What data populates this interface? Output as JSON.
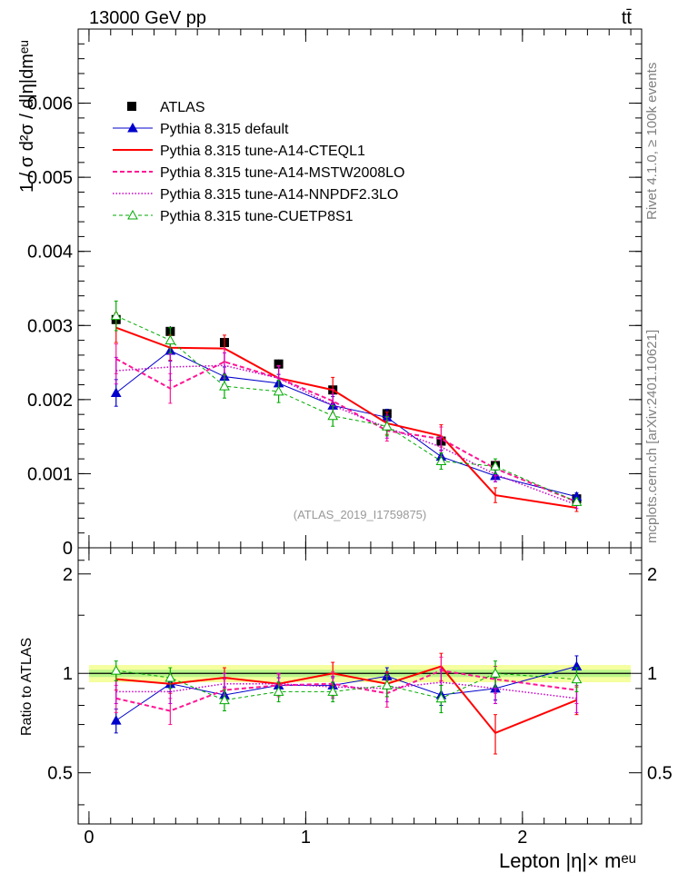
{
  "header": {
    "energy_label": "13000 GeV pp",
    "process_label": "tt̄"
  },
  "side_labels": {
    "rivet": "Rivet 4.1.0, ≥ 100k events",
    "mcplots": "mcplots.cern.ch [arXiv:2401.10621]"
  },
  "watermark": "(ATLAS_2019_I1759875)",
  "main_plot": {
    "ylabel": "1 / σ  d²σ / d|η|dmᵉᵘ",
    "yticks": [
      "0",
      "0.001",
      "0.002",
      "0.003",
      "0.004",
      "0.005",
      "0.006"
    ]
  },
  "ratio_plot": {
    "ylabel": "Ratio to ATLAS",
    "yticks": [
      "0.5",
      "1",
      "2"
    ]
  },
  "xaxis": {
    "label": "Lepton |η|× mᵉᵘ",
    "ticks": [
      "0",
      "1",
      "2"
    ]
  },
  "chart_data": {
    "type": "line",
    "title": "13000 GeV pp  tt̄",
    "xlabel": "Lepton |η|× m^eμ",
    "ylabel": "1/σ d²σ/d|η|dm^eμ",
    "xlim": [
      -0.05,
      2.55
    ],
    "ylim": [
      0,
      0.007
    ],
    "ratio_ylim": [
      0.35,
      2.4
    ],
    "legend_position": "top-left",
    "bin_centers": [
      0.125,
      0.375,
      0.625,
      0.875,
      1.125,
      1.375,
      1.625,
      1.875,
      2.25
    ],
    "bin_edges": [
      0,
      0.25,
      0.5,
      0.75,
      1.0,
      1.25,
      1.5,
      1.75,
      2.0,
      2.5
    ],
    "data": {
      "name": "ATLAS",
      "values": [
        0.00308,
        0.00292,
        0.00277,
        0.00248,
        0.00213,
        0.00181,
        0.00144,
        0.00111,
        0.00066
      ],
      "errors": [
        7e-05,
        7e-05,
        7e-05,
        6e-05,
        6e-05,
        5e-05,
        5e-05,
        4e-05,
        4e-05
      ]
    },
    "series": [
      {
        "name": "Pythia 8.315 default",
        "color": "#0000cc",
        "style": "solid",
        "width": 1,
        "marker": "triangle-filled",
        "values": [
          0.00209,
          0.00266,
          0.00231,
          0.00222,
          0.00192,
          0.00176,
          0.00123,
          0.00097,
          0.00069
        ],
        "errors": [
          0.00018,
          0.00014,
          0.00013,
          0.00012,
          0.00012,
          0.00011,
          9e-05,
          8e-05,
          5e-05
        ],
        "ratio": [
          0.72,
          0.93,
          0.86,
          0.92,
          0.92,
          0.98,
          0.86,
          0.9,
          1.05
        ],
        "ratio_errors": [
          0.06,
          0.05,
          0.05,
          0.05,
          0.05,
          0.06,
          0.06,
          0.07,
          0.08
        ]
      },
      {
        "name": "Pythia 8.315 tune-A14-CTEQL1",
        "color": "#ff0000",
        "style": "solid",
        "width": 2,
        "marker": "none",
        "values": [
          0.00297,
          0.0027,
          0.00269,
          0.00229,
          0.00213,
          0.00168,
          0.00151,
          0.00071,
          0.00054
        ],
        "errors": [
          0.0002,
          0.00017,
          0.00018,
          0.00016,
          0.00017,
          0.00015,
          0.00015,
          0.0001,
          5e-05
        ],
        "ratio": [
          0.96,
          0.93,
          0.97,
          0.93,
          1.0,
          0.93,
          1.05,
          0.66,
          0.83
        ],
        "ratio_errors": [
          0.07,
          0.06,
          0.07,
          0.07,
          0.08,
          0.08,
          0.1,
          0.09,
          0.08
        ]
      },
      {
        "name": "Pythia 8.315 tune-A14-MSTW2008LO",
        "color": "#ff1493",
        "style": "dashed",
        "width": 2,
        "marker": "none",
        "values": [
          0.00255,
          0.00215,
          0.00251,
          0.00229,
          0.00198,
          0.00158,
          0.00147,
          0.00107,
          0.00062
        ],
        "errors": [
          0.0002,
          0.0002,
          0.00018,
          0.00017,
          0.00016,
          0.00014,
          0.00016,
          0.0001,
          5e-05
        ],
        "ratio": [
          0.84,
          0.77,
          0.89,
          0.92,
          0.93,
          0.87,
          1.02,
          0.96,
          0.89
        ],
        "ratio_errors": [
          0.08,
          0.07,
          0.07,
          0.07,
          0.08,
          0.08,
          0.1,
          0.09,
          0.08
        ]
      },
      {
        "name": "Pythia 8.315 tune-A14-NNPDF2.3LO",
        "color": "#cc00cc",
        "style": "dotted",
        "width": 1.5,
        "marker": "none",
        "values": [
          0.00239,
          0.00244,
          0.00246,
          0.00229,
          0.00192,
          0.00162,
          0.00136,
          0.00099,
          0.00058
        ],
        "errors": [
          0.00018,
          0.00018,
          0.00017,
          0.00016,
          0.00015,
          0.00014,
          0.00013,
          0.0001,
          5e-05
        ],
        "ratio": [
          0.88,
          0.88,
          0.93,
          0.93,
          0.91,
          0.9,
          0.94,
          0.9,
          0.84
        ],
        "ratio_errors": [
          0.07,
          0.07,
          0.07,
          0.07,
          0.07,
          0.08,
          0.09,
          0.09,
          0.08
        ]
      },
      {
        "name": "Pythia 8.315 tune-CUETP8S1",
        "color": "#00aa00",
        "style": "dashed-thin",
        "width": 1,
        "marker": "triangle-open",
        "values": [
          0.00313,
          0.0028,
          0.00218,
          0.00211,
          0.00178,
          0.00164,
          0.00117,
          0.0011,
          0.00062
        ],
        "errors": [
          0.0002,
          0.00017,
          0.00016,
          0.00015,
          0.00014,
          0.00013,
          0.00011,
          0.0001,
          5e-05
        ],
        "ratio": [
          1.02,
          0.97,
          0.83,
          0.88,
          0.88,
          0.92,
          0.84,
          1.0,
          0.96
        ],
        "ratio_errors": [
          0.07,
          0.07,
          0.06,
          0.06,
          0.06,
          0.07,
          0.08,
          0.09,
          0.08
        ]
      }
    ]
  }
}
